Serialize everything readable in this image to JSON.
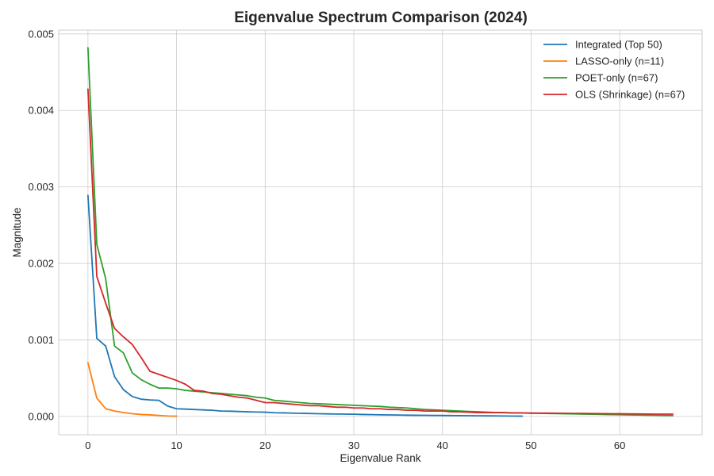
{
  "chart_data": {
    "type": "line",
    "title": "Eigenvalue Spectrum Comparison (2024)",
    "xlabel": "Eigenvalue Rank",
    "ylabel": "Magnitude",
    "xlim": [
      -3.3,
      69.3
    ],
    "ylim": [
      -0.00024,
      0.00505
    ],
    "xticks": [
      0,
      10,
      20,
      30,
      40,
      50,
      60
    ],
    "xtick_labels": [
      "0",
      "10",
      "20",
      "30",
      "40",
      "50",
      "60"
    ],
    "yticks": [
      0.0,
      0.001,
      0.002,
      0.003,
      0.004,
      0.005
    ],
    "ytick_labels": [
      "0.000",
      "0.001",
      "0.002",
      "0.003",
      "0.004",
      "0.005"
    ],
    "grid": true,
    "legend_position": "top-right",
    "series": [
      {
        "name": "Integrated (Top 50)",
        "color": "#1f77b4",
        "x_start": 0,
        "values": [
          0.00289,
          0.00102,
          0.00092,
          0.00052,
          0.00035,
          0.00026,
          0.000225,
          0.000215,
          0.00021,
          0.000135,
          0.0001,
          9.5e-05,
          9e-05,
          8.5e-05,
          8e-05,
          7e-05,
          6.8e-05,
          6.4e-05,
          6e-05,
          5.7e-05,
          5.5e-05,
          4.8e-05,
          4.6e-05,
          4.3e-05,
          4e-05,
          3.8e-05,
          3.5e-05,
          3.3e-05,
          3.1e-05,
          3e-05,
          2.8e-05,
          2.5e-05,
          2.3e-05,
          2.1e-05,
          1.9e-05,
          1.8e-05,
          1.6e-05,
          1.5e-05,
          1.4e-05,
          1.3e-05,
          1.2e-05,
          1.1e-05,
          1e-05,
          9e-06,
          8e-06,
          7e-06,
          6e-06,
          5e-06,
          4e-06,
          3e-06
        ]
      },
      {
        "name": "LASSO-only (n=11)",
        "color": "#ff7f0e",
        "x_start": 0,
        "values": [
          0.0007,
          0.00024,
          0.0001,
          7e-05,
          5e-05,
          3.5e-05,
          2.5e-05,
          2e-05,
          1.3e-05,
          5e-06,
          3e-06
        ]
      },
      {
        "name": "POET-only (n=67)",
        "color": "#2ca02c",
        "x_start": 0,
        "values": [
          0.00482,
          0.00225,
          0.0018,
          0.00092,
          0.00083,
          0.00057,
          0.00048,
          0.00042,
          0.00037,
          0.00037,
          0.00036,
          0.00034,
          0.00033,
          0.00032,
          0.00031,
          0.0003,
          0.00029,
          0.00028,
          0.00027,
          0.00025,
          0.00024,
          0.00021,
          0.0002,
          0.00019,
          0.00018,
          0.00017,
          0.000165,
          0.00016,
          0.000155,
          0.00015,
          0.000145,
          0.00014,
          0.000135,
          0.00013,
          0.00012,
          0.000115,
          0.00011,
          0.0001,
          9e-05,
          8.5e-05,
          8e-05,
          7.5e-05,
          7e-05,
          6.5e-05,
          6e-05,
          5.5e-05,
          5e-05,
          5e-05,
          4.5e-05,
          4.5e-05,
          4e-05,
          4e-05,
          3.8e-05,
          3.6e-05,
          3.4e-05,
          3.2e-05,
          3e-05,
          2.8e-05,
          2.6e-05,
          2.4e-05,
          2.2e-05,
          2e-05,
          1.8e-05,
          1.6e-05,
          1.4e-05,
          1.2e-05,
          1e-05
        ]
      },
      {
        "name": "OLS (Shrinkage) (n=67)",
        "color": "#d62728",
        "x_start": 0,
        "values": [
          0.00428,
          0.00183,
          0.00148,
          0.00115,
          0.00104,
          0.00094,
          0.00077,
          0.00059,
          0.00055,
          0.00051,
          0.00047,
          0.00042,
          0.00034,
          0.00033,
          0.0003,
          0.00029,
          0.00027,
          0.00025,
          0.00024,
          0.00021,
          0.00018,
          0.00018,
          0.00017,
          0.00016,
          0.00015,
          0.00014,
          0.00014,
          0.00013,
          0.00012,
          0.00012,
          0.00011,
          0.00011,
          0.0001,
          0.0001,
          9e-05,
          9e-05,
          8e-05,
          8e-05,
          7e-05,
          7e-05,
          7e-05,
          6e-05,
          6e-05,
          5.5e-05,
          5e-05,
          5e-05,
          5e-05,
          4.8e-05,
          4.6e-05,
          4.5e-05,
          4.4e-05,
          4.3e-05,
          4.2e-05,
          4.1e-05,
          4e-05,
          3.9e-05,
          3.8e-05,
          3.7e-05,
          3.6e-05,
          3.5e-05,
          3.4e-05,
          3.3e-05,
          3.2e-05,
          3.1e-05,
          3e-05,
          3e-05,
          3e-05
        ]
      }
    ]
  }
}
